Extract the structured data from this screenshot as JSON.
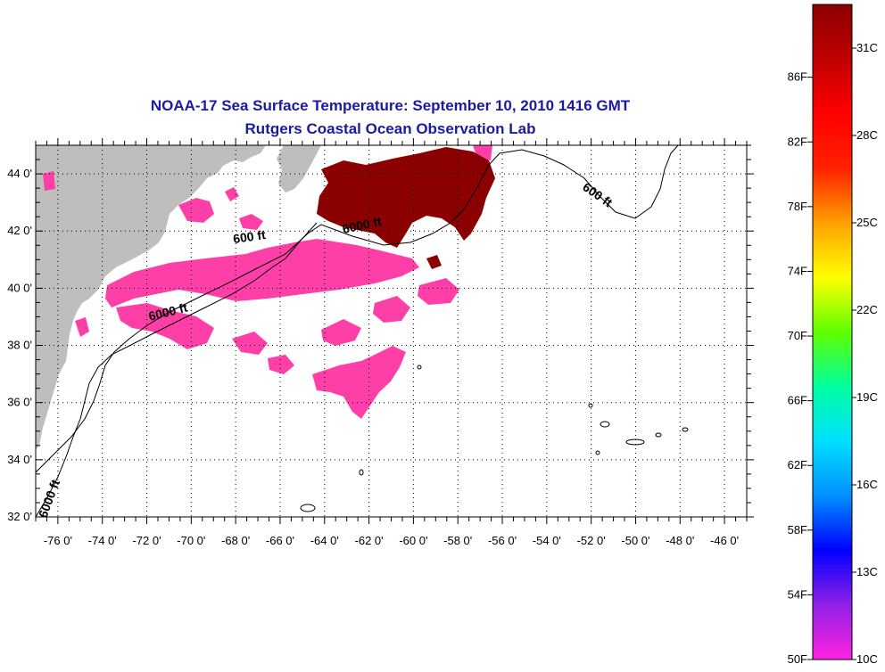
{
  "title": "NOAA-17 Sea Surface Temperature:  September 10, 2010 1416 GMT",
  "subtitle": "Rutgers Coastal Ocean Observation Lab",
  "map": {
    "lon_range": [
      -77,
      -45
    ],
    "lat_range": [
      32,
      45
    ],
    "lon_ticks": [
      -76,
      -74,
      -72,
      -70,
      -68,
      -66,
      -64,
      -62,
      -60,
      -58,
      -56,
      -54,
      -52,
      -50,
      -48,
      -46
    ],
    "lat_ticks": [
      32,
      34,
      36,
      38,
      40,
      42,
      44
    ],
    "lon_tick_labels": [
      "-76 0'",
      "-74 0'",
      "-72 0'",
      "-70 0'",
      "-68 0'",
      "-66 0'",
      "-64 0'",
      "-62 0'",
      "-60 0'",
      "-58 0'",
      "-56 0'",
      "-54 0'",
      "-52 0'",
      "-50 0'",
      "-48 0'",
      "-46 0'"
    ],
    "lat_tick_labels": [
      "32 0'",
      "34 0'",
      "36 0'",
      "38 0'",
      "40 0'",
      "42 0'",
      "44 0'"
    ],
    "grid": "dotted",
    "land_color": "#bebebe",
    "contours": [
      {
        "label": "600 ft"
      },
      {
        "label": "6000 ft"
      },
      {
        "label": "6000 ft"
      },
      {
        "label": "600 ft"
      },
      {
        "label": "6000 ft"
      }
    ]
  },
  "colorbar": {
    "fahrenheit_labels": [
      "86F",
      "82F",
      "78F",
      "74F",
      "70F",
      "66F",
      "62F",
      "58F",
      "54F",
      "50F"
    ],
    "fahrenheit_values": [
      86,
      82,
      78,
      74,
      70,
      66,
      62,
      58,
      54,
      50
    ],
    "celsius_labels": [
      "31C",
      "28C",
      "25C",
      "22C",
      "19C",
      "16C",
      "13C",
      "10C"
    ],
    "celsius_values": [
      31,
      28,
      25,
      22,
      19,
      16,
      13,
      10
    ],
    "range_c": [
      10,
      32.5
    ],
    "colors": [
      "#ff22e0",
      "#9020e8",
      "#0000ff",
      "#0090ff",
      "#00e0ff",
      "#00ffa0",
      "#60ff00",
      "#ffff00",
      "#ffa000",
      "#ff2000",
      "#ff0000",
      "#c00000",
      "#8b0000"
    ]
  },
  "data_colors": {
    "cold": "#ff3fa8",
    "warm": "#8b0000"
  }
}
